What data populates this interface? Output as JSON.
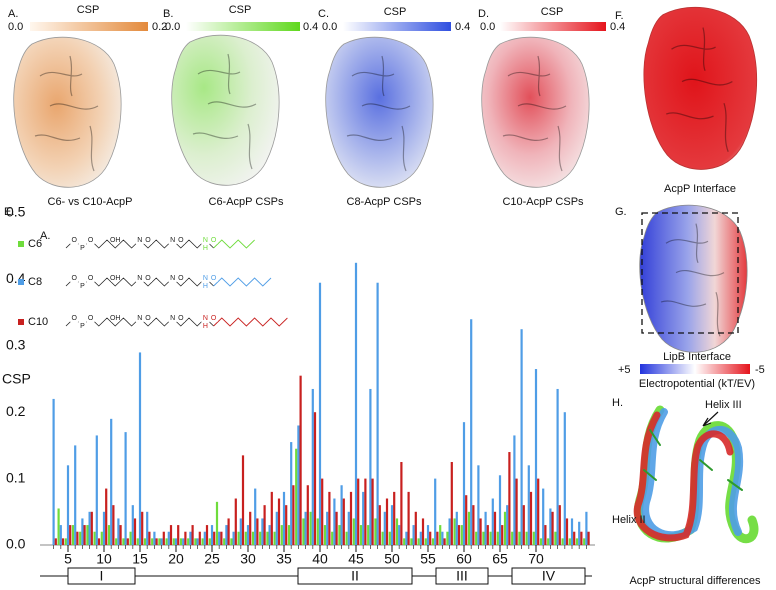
{
  "panels": {
    "a": {
      "letter": "A.",
      "scale_title": "CSP",
      "scale_min": "0.0",
      "scale_max": "0.2",
      "caption": "C6- vs C10-AcpP"
    },
    "b": {
      "letter": "B.",
      "scale_title": "CSP",
      "scale_min": "0.0",
      "scale_max": "0.4",
      "caption": "C6-AcpP CSPs"
    },
    "c": {
      "letter": "C.",
      "scale_title": "CSP",
      "scale_min": "0.0",
      "scale_max": "0.4",
      "caption": "C8-AcpP CSPs"
    },
    "d": {
      "letter": "D.",
      "scale_title": "CSP",
      "scale_min": "0.0",
      "scale_max": "0.4",
      "caption": "C10-AcpP CSPs"
    },
    "f": {
      "letter": "F.",
      "caption": "AcpP Interface"
    },
    "g": {
      "letter": "G.",
      "caption": "LipB Interface",
      "scale_min": "+5",
      "scale_max": "-5",
      "scale_title": "Electropotential (kT/EV)"
    },
    "h": {
      "letter": "H.",
      "helix_iii": "Helix III",
      "helix_ii": "Helix II",
      "caption": "AcpP structural differences"
    }
  },
  "chart_data": {
    "type": "bar",
    "panel_letter": "E.",
    "inner_label": "A.",
    "y_label": "CSP",
    "x": [
      3,
      4,
      5,
      6,
      7,
      8,
      9,
      10,
      11,
      12,
      13,
      14,
      15,
      16,
      17,
      18,
      19,
      20,
      21,
      22,
      23,
      24,
      25,
      26,
      27,
      28,
      29,
      30,
      31,
      32,
      33,
      34,
      35,
      36,
      37,
      38,
      39,
      40,
      41,
      42,
      43,
      44,
      45,
      46,
      47,
      48,
      49,
      50,
      51,
      52,
      53,
      54,
      55,
      56,
      57,
      58,
      59,
      60,
      61,
      62,
      63,
      64,
      65,
      66,
      67,
      68,
      69,
      70,
      71,
      72,
      73,
      74,
      75,
      76,
      77
    ],
    "xlim": [
      2.5,
      77.5
    ],
    "xticks": [
      5,
      10,
      15,
      20,
      25,
      30,
      35,
      40,
      45,
      50,
      55,
      60,
      65,
      70
    ],
    "ylim": [
      0,
      0.5
    ],
    "yticks": [
      {
        "value": 0,
        "label": "0.0"
      },
      0.1,
      0.2,
      0.3,
      0.4,
      0.5
    ],
    "series": [
      {
        "name": "C6",
        "color": "#6fdc3c",
        "values": [
          0,
          0.055,
          0.01,
          0.03,
          0.02,
          0.03,
          0.02,
          0.02,
          0.03,
          0.01,
          0.01,
          0.02,
          0.01,
          0.01,
          0.01,
          0.01,
          0.01,
          0.01,
          0.01,
          0.01,
          0.01,
          0.01,
          0.01,
          0.065,
          0.01,
          0.01,
          0.02,
          0.02,
          0.02,
          0.02,
          0.02,
          0.02,
          0.03,
          0.03,
          0.145,
          0.04,
          0.05,
          0.04,
          0.03,
          0.02,
          0.03,
          0.02,
          0.04,
          0.03,
          0.03,
          0.04,
          0.02,
          0.02,
          0.04,
          0.01,
          0.01,
          0.01,
          0.01,
          0.01,
          0.03,
          0.02,
          0.04,
          0.03,
          0.05,
          0.02,
          0.02,
          0.02,
          0.02,
          0.05,
          0.02,
          0.02,
          0.02,
          0.02,
          0.01,
          0.01,
          0.02,
          0.01,
          0.01,
          0.01,
          0.01
        ]
      },
      {
        "name": "C8",
        "color": "#4f9de6",
        "values": [
          0.22,
          0.03,
          0.12,
          0.15,
          0.04,
          0.05,
          0.165,
          0.05,
          0.19,
          0.04,
          0.17,
          0.06,
          0.29,
          0.05,
          0.02,
          0.01,
          0.02,
          0.01,
          0.01,
          0.02,
          0.01,
          0.02,
          0.03,
          0.02,
          0.03,
          0.02,
          0.04,
          0.03,
          0.085,
          0.04,
          0.03,
          0.05,
          0.08,
          0.155,
          0.18,
          0.05,
          0.235,
          0.395,
          0.05,
          0.07,
          0.09,
          0.05,
          0.425,
          0.08,
          0.235,
          0.395,
          0.05,
          0.06,
          0.03,
          0.02,
          0.03,
          0.02,
          0.03,
          0.1,
          0.02,
          0.04,
          0.05,
          0.185,
          0.34,
          0.12,
          0.05,
          0.07,
          0.105,
          0.06,
          0.165,
          0.325,
          0.12,
          0.265,
          0.085,
          0.055,
          0.235,
          0.2,
          0.04,
          0.035,
          0.05
        ]
      },
      {
        "name": "C10",
        "color": "#c8201f",
        "values": [
          0.01,
          0.01,
          0.03,
          0.02,
          0.03,
          0.05,
          0.01,
          0.085,
          0.06,
          0.03,
          0.01,
          0.04,
          0.05,
          0.02,
          0.01,
          0.02,
          0.03,
          0.03,
          0.02,
          0.03,
          0.02,
          0.03,
          0.02,
          0.02,
          0.04,
          0.07,
          0.135,
          0.05,
          0.04,
          0.06,
          0.08,
          0.07,
          0.06,
          0.09,
          0.255,
          0.09,
          0.2,
          0.1,
          0.08,
          0.05,
          0.07,
          0.08,
          0.1,
          0.1,
          0.1,
          0.06,
          0.07,
          0.08,
          0.125,
          0.08,
          0.05,
          0.04,
          0.02,
          0.02,
          0.01,
          0.125,
          0.03,
          0.075,
          0.06,
          0.04,
          0.03,
          0.05,
          0.03,
          0.14,
          0.1,
          0.06,
          0.08,
          0.1,
          0.03,
          0.05,
          0.06,
          0.04,
          0.02,
          0.02,
          0.02
        ]
      }
    ],
    "helices": [
      "I",
      "II",
      "III",
      "IV"
    ],
    "molecule_labels": {
      "o": "O",
      "p": "P",
      "oh": "OH",
      "n": "N",
      "h": "H"
    }
  }
}
